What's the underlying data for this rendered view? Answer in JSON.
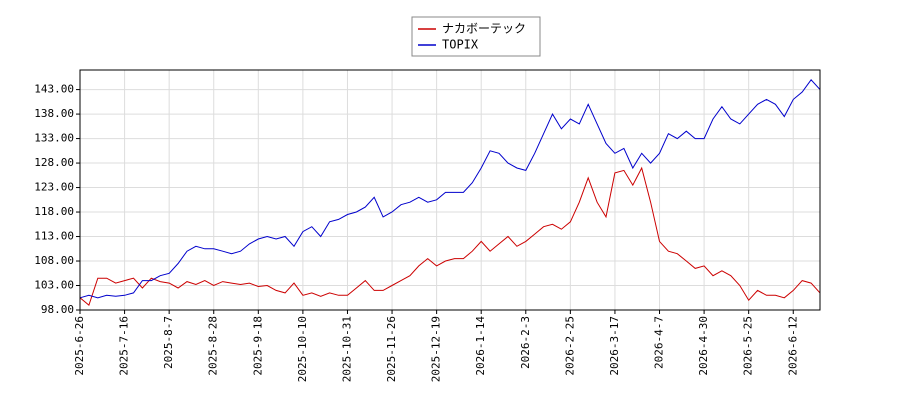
{
  "chart_data": {
    "type": "line",
    "x": [
      0,
      3,
      6,
      9,
      12,
      15,
      18,
      21,
      24,
      27,
      30,
      33,
      36,
      39,
      42,
      45,
      48,
      51,
      54,
      57,
      60,
      63,
      66,
      69,
      72,
      75,
      78,
      81,
      84,
      87,
      90,
      93,
      96,
      99,
      102,
      105,
      108,
      111,
      114,
      117,
      120,
      123,
      126,
      129,
      132,
      135,
      138,
      141,
      144,
      147,
      150,
      153,
      156,
      159,
      162,
      165,
      168,
      171,
      174,
      177,
      180,
      183,
      186,
      189,
      192,
      195,
      198,
      201,
      204,
      207,
      210,
      213,
      216,
      219,
      222,
      225,
      228,
      231,
      234,
      237,
      240,
      243,
      246,
      249
    ],
    "series": [
      {
        "name": "ナカボーテック",
        "color": "#cc0000",
        "values": [
          100.5,
          99,
          104.5,
          104.5,
          103.5,
          104,
          104.5,
          102.5,
          104.5,
          103.8,
          103.5,
          102.5,
          103.8,
          103.2,
          104,
          103,
          103.8,
          103.5,
          103.2,
          103.5,
          102.8,
          103,
          102,
          101.5,
          103.5,
          101,
          101.5,
          100.8,
          101.5,
          101,
          101,
          102.5,
          104,
          102,
          102,
          103,
          104,
          105,
          107,
          108.5,
          107,
          108,
          108.5,
          108.5,
          110,
          112,
          110,
          111.5,
          113,
          111,
          112,
          113.5,
          115,
          115.5,
          114.5,
          116,
          120,
          125,
          120,
          117,
          126,
          126.5,
          123.5,
          127,
          120,
          112,
          110,
          109.5,
          108,
          106.5,
          107,
          105,
          106,
          105,
          103,
          100,
          102,
          101,
          101,
          100.5,
          102,
          104,
          103.5,
          101.5
        ]
      },
      {
        "name": "TOPIX",
        "color": "#0000cc",
        "values": [
          100.5,
          101,
          100.5,
          101,
          100.8,
          101,
          101.5,
          104,
          104,
          105,
          105.5,
          107.5,
          110,
          111,
          110.5,
          110.5,
          110,
          109.5,
          110,
          111.5,
          112.5,
          113,
          112.5,
          113,
          111,
          114,
          115,
          113,
          116,
          116.5,
          117.5,
          118,
          119,
          121,
          117,
          118,
          119.5,
          120,
          121,
          120,
          120.5,
          122,
          122,
          122,
          124,
          127,
          130.5,
          130,
          128,
          127,
          126.5,
          130,
          134,
          138,
          135,
          137,
          136,
          140,
          136,
          132,
          130,
          131,
          127,
          130,
          128,
          130,
          134,
          133,
          134.5,
          133,
          133,
          137,
          139.5,
          137,
          136,
          138,
          140,
          141,
          140,
          137.5,
          141,
          142.5,
          145,
          143
        ]
      }
    ],
    "xlim": [
      0,
      249
    ],
    "xticks": [
      {
        "value": 0,
        "label": "2025-6-26"
      },
      {
        "value": 15,
        "label": "2025-7-16"
      },
      {
        "value": 30,
        "label": "2025-8-7"
      },
      {
        "value": 45,
        "label": "2025-8-28"
      },
      {
        "value": 60,
        "label": "2025-9-18"
      },
      {
        "value": 75,
        "label": "2025-10-10"
      },
      {
        "value": 90,
        "label": "2025-10-31"
      },
      {
        "value": 105,
        "label": "2025-11-26"
      },
      {
        "value": 120,
        "label": "2025-12-19"
      },
      {
        "value": 135,
        "label": "2026-1-14"
      },
      {
        "value": 150,
        "label": "2026-2-3"
      },
      {
        "value": 165,
        "label": "2026-2-25"
      },
      {
        "value": 180,
        "label": "2026-3-17"
      },
      {
        "value": 195,
        "label": "2026-4-7"
      },
      {
        "value": 210,
        "label": "2026-4-30"
      },
      {
        "value": 225,
        "label": "2026-5-25"
      },
      {
        "value": 240,
        "label": "2026-6-12"
      }
    ],
    "ylim": [
      98,
      147
    ],
    "yticks": [
      {
        "value": 98,
        "label": "98.00"
      },
      {
        "value": 103,
        "label": "103.00"
      },
      {
        "value": 108,
        "label": "108.00"
      },
      {
        "value": 113,
        "label": "113.00"
      },
      {
        "value": 118,
        "label": "118.00"
      },
      {
        "value": 123,
        "label": "123.00"
      },
      {
        "value": 128,
        "label": "128.00"
      },
      {
        "value": 133,
        "label": "133.00"
      },
      {
        "value": 138,
        "label": "138.00"
      },
      {
        "value": 143,
        "label": "143.00"
      }
    ],
    "grid": true
  }
}
